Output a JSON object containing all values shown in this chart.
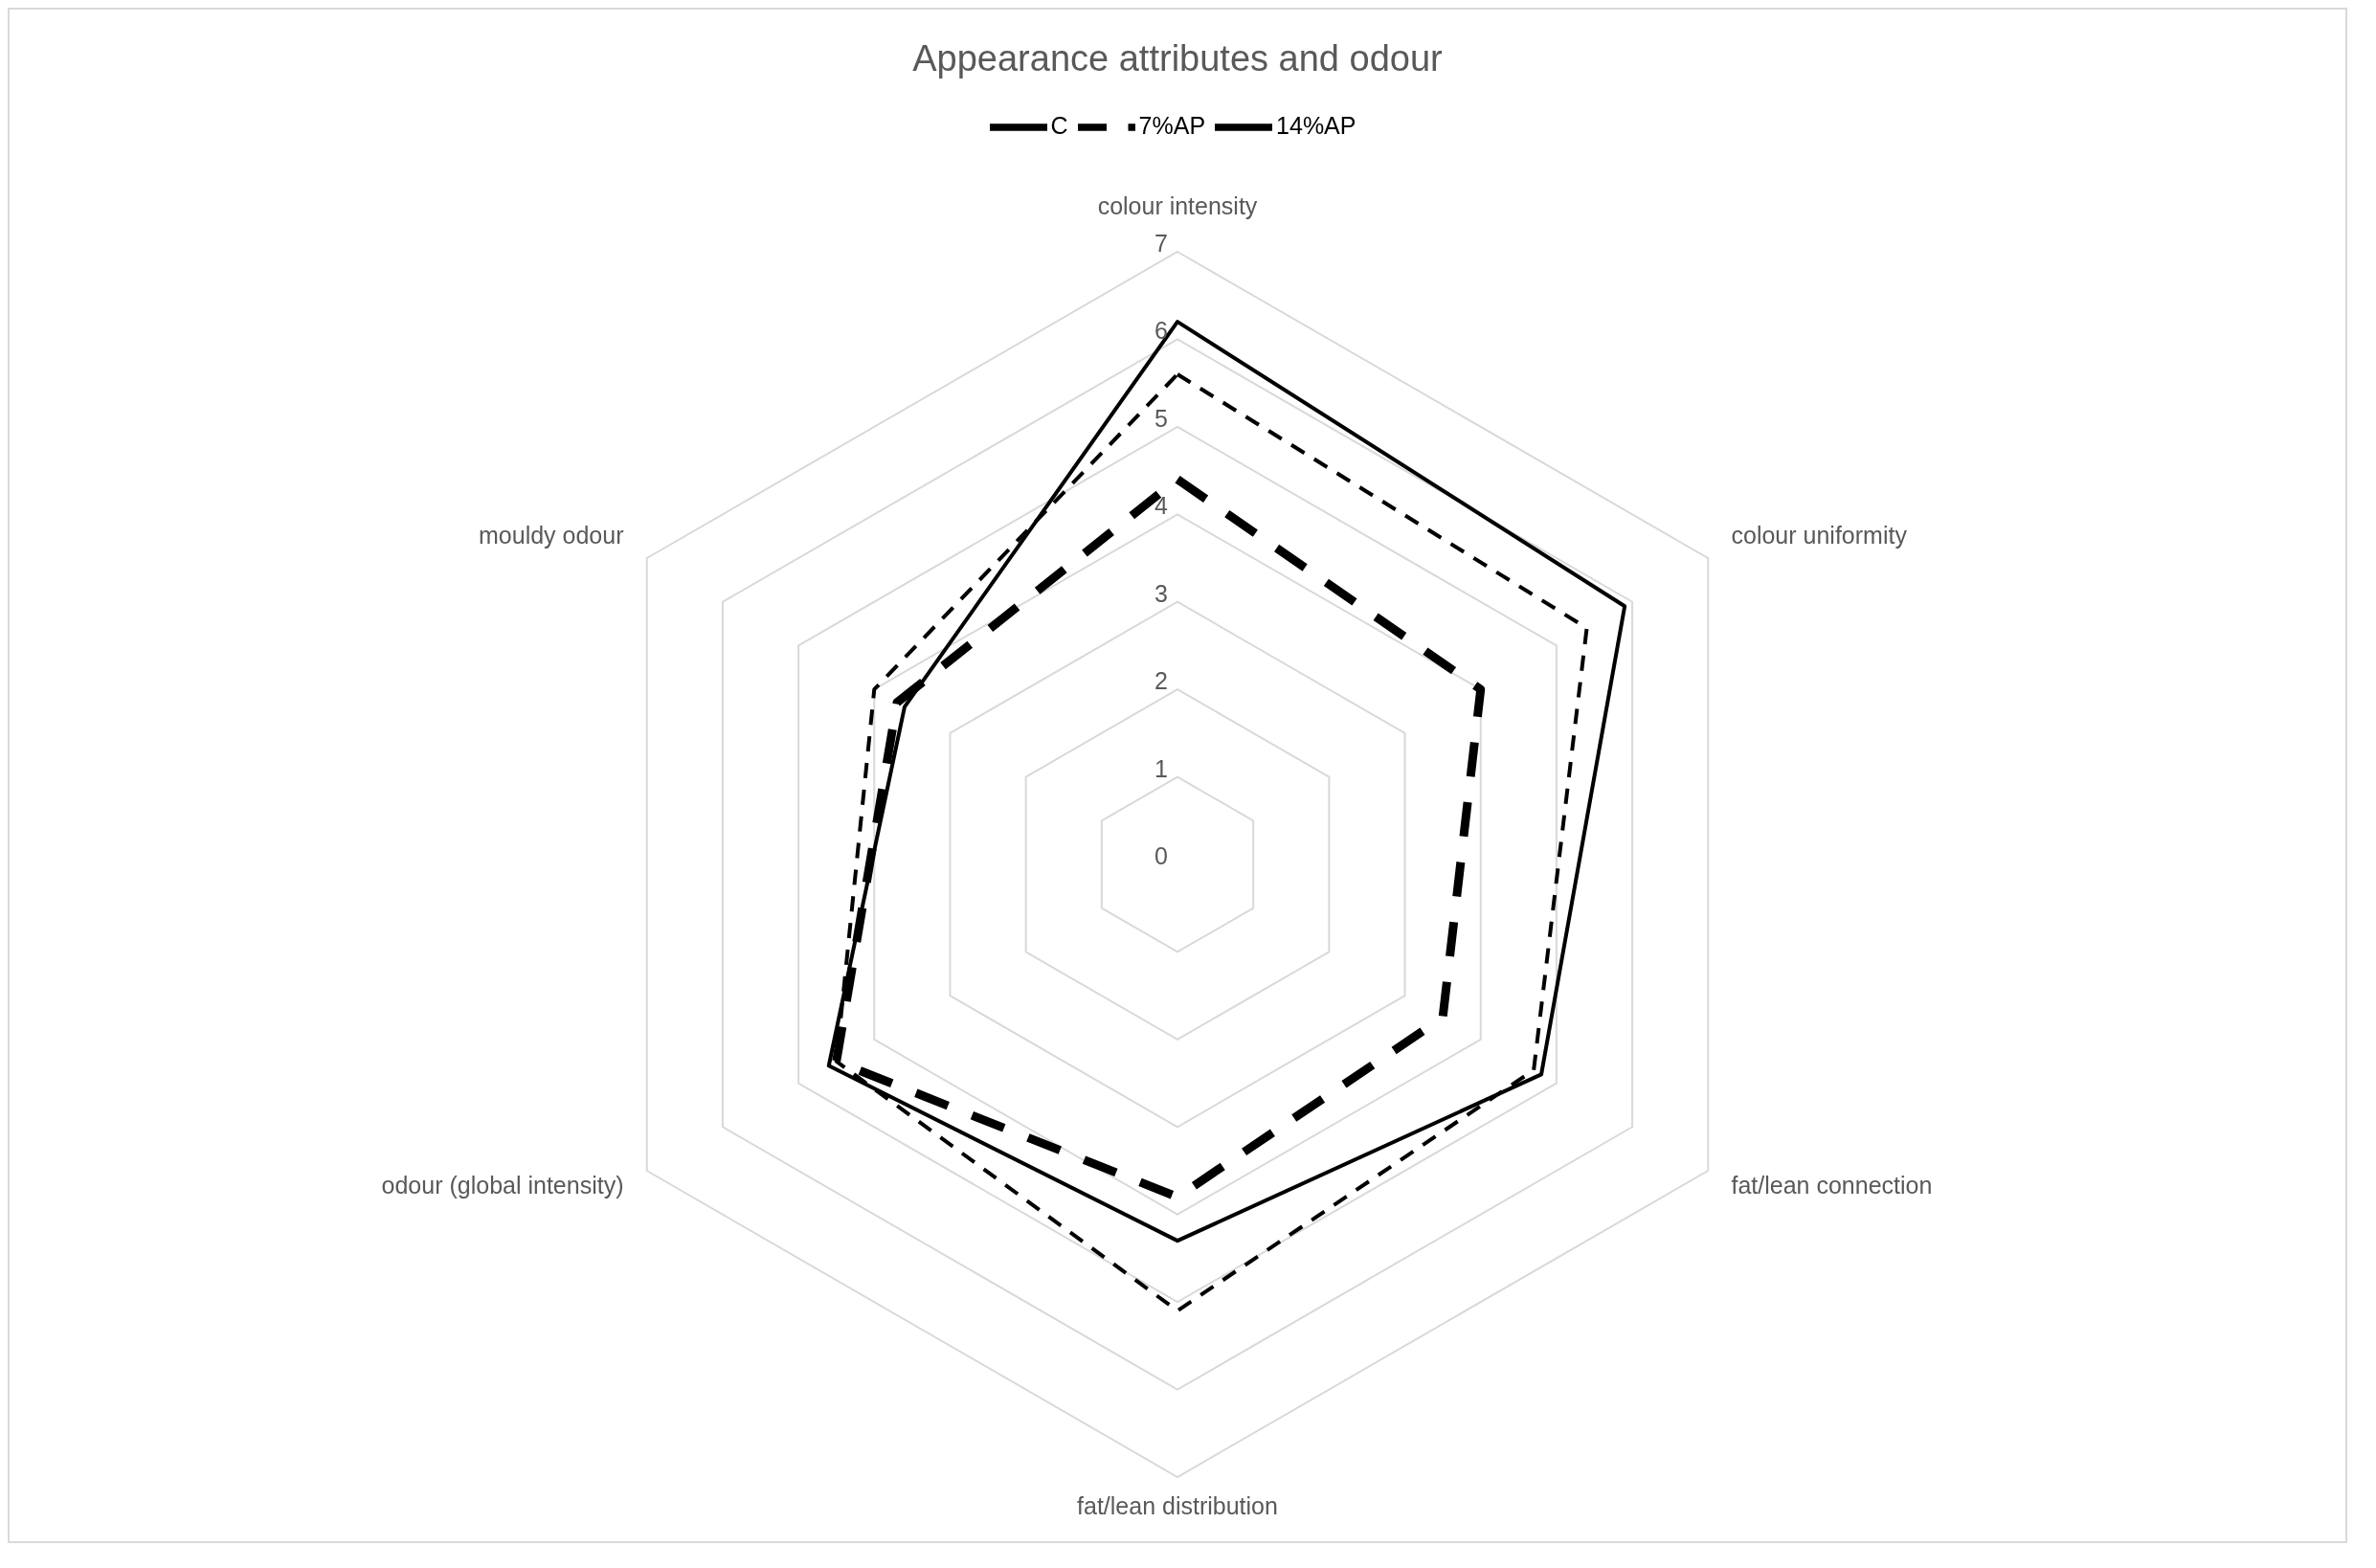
{
  "chart_data": {
    "type": "radar",
    "title": "Appearance attributes and odour",
    "categories": [
      "colour intensity",
      "colour uniformity",
      "fat/lean connection",
      "fat/lean distribution",
      "odour (global intensity)",
      "mouldy odour"
    ],
    "series": [
      {
        "name": "C",
        "color": "#000000",
        "line_style": "solid",
        "values": [
          6.2,
          5.9,
          4.8,
          4.3,
          4.6,
          3.6
        ]
      },
      {
        "name": "7%AP",
        "color": "#000000",
        "line_style": "dashed",
        "values": [
          5.6,
          5.4,
          4.7,
          5.1,
          4.5,
          4.0
        ]
      },
      {
        "name": "14%AP",
        "color": "#000000",
        "line_style": "dashed",
        "values": [
          4.4,
          4.0,
          3.5,
          3.8,
          4.5,
          3.7
        ]
      }
    ],
    "ylim": [
      0,
      7
    ],
    "yticks": [
      0,
      1,
      2,
      3,
      4,
      5,
      6,
      7
    ],
    "grid": true,
    "legend": "top",
    "marker": "none"
  }
}
